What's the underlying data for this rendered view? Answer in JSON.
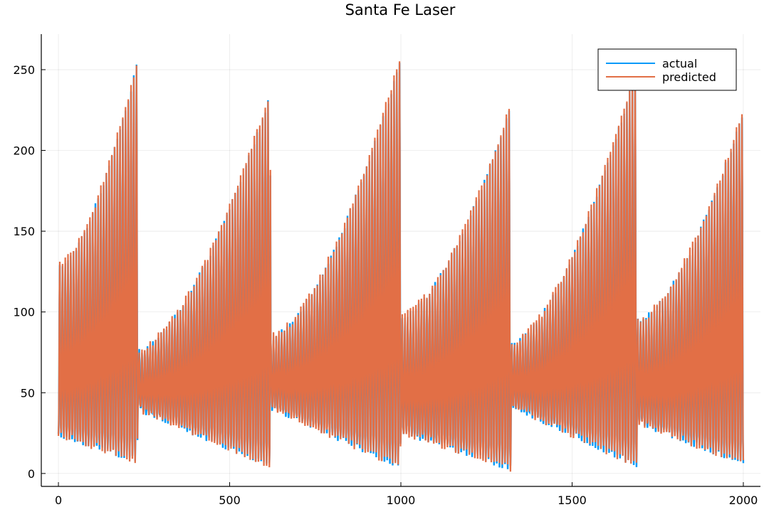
{
  "chart_data": {
    "type": "line",
    "title": "Santa Fe Laser",
    "xlabel": "",
    "ylabel": "",
    "xlim": [
      -50,
      2050
    ],
    "ylim": [
      -8,
      272
    ],
    "x_ticks": [
      0,
      500,
      1000,
      1500,
      2000
    ],
    "x_tick_labels": [
      "0",
      "500",
      "1000",
      "1500",
      "2000"
    ],
    "y_ticks": [
      0,
      50,
      100,
      150,
      200,
      250
    ],
    "y_tick_labels": [
      "0",
      "50",
      "100",
      "150",
      "200",
      "250"
    ],
    "grid": true,
    "legend_position": "top-right",
    "signal": {
      "n_points": 2000,
      "period": 8,
      "collapse_indices": [
        232,
        620,
        1000,
        1322,
        1690,
        2000
      ],
      "segments": [
        {
          "start": 0,
          "end": 232,
          "peak_start": 128,
          "peak_end": 255,
          "trough_start": 24,
          "trough_end": 8
        },
        {
          "start": 232,
          "end": 620,
          "peak_start": 76,
          "peak_end": 235,
          "trough_start": 40,
          "trough_end": 5
        },
        {
          "start": 620,
          "end": 1000,
          "peak_start": 84,
          "peak_end": 256,
          "trough_start": 41,
          "trough_end": 4
        },
        {
          "start": 1000,
          "end": 1322,
          "peak_start": 97,
          "peak_end": 227,
          "trough_start": 26,
          "trough_end": 3
        },
        {
          "start": 1322,
          "end": 1690,
          "peak_start": 80,
          "peak_end": 252,
          "trough_start": 42,
          "trough_end": 5
        },
        {
          "start": 1690,
          "end": 2000,
          "peak_start": 94,
          "peak_end": 224,
          "trough_start": 32,
          "trough_end": 6
        }
      ]
    },
    "series": [
      {
        "name": "actual",
        "color": "#009af9"
      },
      {
        "name": "predicted",
        "color": "#e26f46"
      }
    ]
  }
}
